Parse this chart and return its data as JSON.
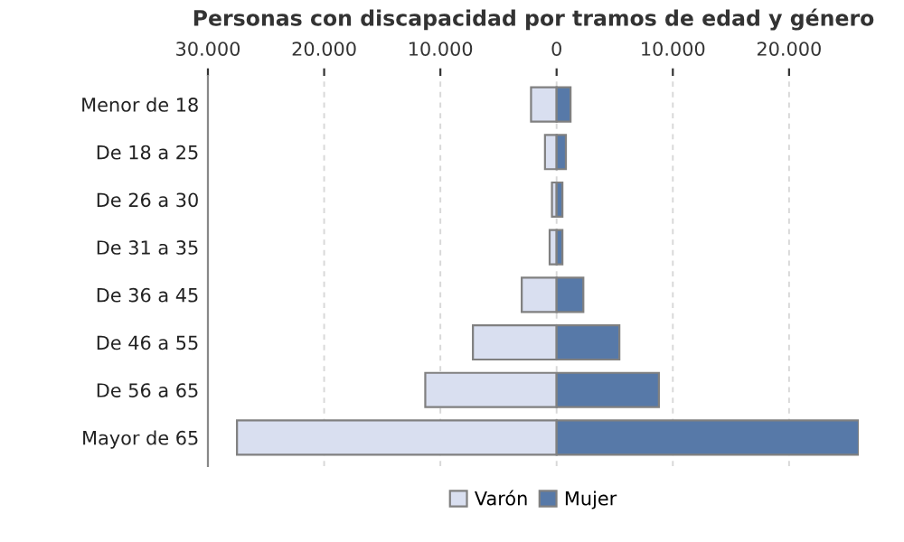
{
  "chart_data": {
    "type": "bar",
    "orientation": "horizontal",
    "stacked": true,
    "title": "Personas con discapacidad por tramos de edad y género",
    "categories": [
      "Menor de 18",
      "De 18 a 25",
      "De 26 a 30",
      "De 31 a 35",
      "De 36 a 45",
      "De 46 a 55",
      "De 56 a 65",
      "Mayor de 65"
    ],
    "series": [
      {
        "name": "Varón",
        "color": "#d9dff0",
        "values": [
          -2200,
          -1000,
          -400,
          -600,
          -3000,
          -7200,
          -11300,
          -27500
        ]
      },
      {
        "name": "Mujer",
        "color": "#5779a8",
        "values": [
          1200,
          800,
          500,
          500,
          2300,
          5400,
          8800,
          26000
        ]
      }
    ],
    "xlim": [
      -30000,
      26000
    ],
    "xticks": [
      {
        "value": -30000,
        "label": "30.000"
      },
      {
        "value": -20000,
        "label": "20.000"
      },
      {
        "value": -10000,
        "label": "10.000"
      },
      0,
      {
        "value": 10000,
        "label": "10.000"
      },
      {
        "value": 20000,
        "label": "20.000"
      }
    ],
    "grid": "x",
    "legend": "bottom"
  }
}
